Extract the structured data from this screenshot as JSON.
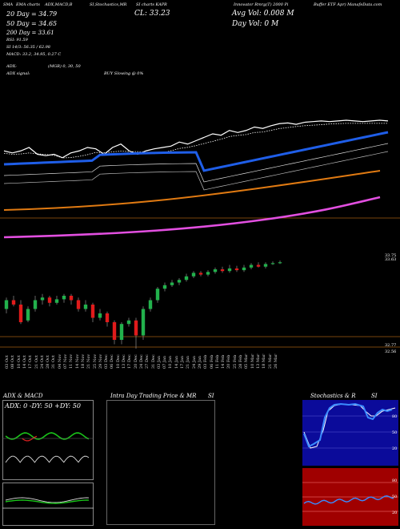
{
  "header": {
    "title_fragments": [
      "SMA",
      "EMA charts",
      "ADX,MACD,B",
      "SI,Stochastics,MR",
      "SI charts KAPR",
      "Innovator Rmrg(T) 2000 Pi",
      "Buffer ETF Apr) ManafeData.com"
    ],
    "close_label": "CL: 33.23",
    "avg_vol_label": "Avg Vol: 0.008  M",
    "day_vol_label": "Day Vol: 0  M",
    "sma_lines": [
      "20  Day = 34.79",
      "50  Day = 34.65",
      "200  Day = 33.61",
      "RSI: 91.59",
      "SI 14/3: 56.35 / 62.98",
      "MACD: 33.2, 34.95, 0.27  C"
    ],
    "adx_line": "ADX:",
    "adx_mid": "(MGR) 0,  30,  50",
    "adx_signal_label": "ADX  signal:",
    "buy_label": "BUY Slowing @ 0%"
  },
  "price_axis": {
    "top_labels": [
      "33.75",
      "33.63"
    ],
    "bottom_labels": [
      "32.77",
      "32.56"
    ]
  },
  "dates": [
    "03 Oct",
    "08 Oct",
    "10 Oct",
    "14 Oct",
    "17 Oct",
    "21 Oct",
    "24 Oct",
    "28 Oct",
    "31 Oct",
    "04 Nov",
    "07 Nov",
    "11 Nov",
    "14 Nov",
    "18 Nov",
    "21 Nov",
    "25 Nov",
    "29 Nov",
    "03 Dec",
    "06 Dec",
    "10 Dec",
    "13 Dec",
    "17 Dec",
    "20 Dec",
    "24 Dec",
    "27 Dec",
    "31 Dec",
    "03 Jan",
    "07 Jan",
    "10 Jan",
    "14 Jan",
    "17 Jan",
    "21 Jan",
    "24 Jan",
    "29 Jan",
    "03 Feb",
    "06 Feb",
    "11 Feb",
    "14 Feb",
    "20 Feb",
    "25 Feb",
    "28 Feb",
    "05 Mar",
    "10 Mar",
    "13 Mar",
    "18 Mar",
    "21 Mar",
    "26 Mar"
  ],
  "panels": {
    "adx_title": "ADX  & MACD",
    "adx_values": "ADX: 0  -DY: 50  +DY: 50",
    "intraday_title": "Intra  Day Trading Price  & MR",
    "intraday_si": "SI",
    "stoch_title": "Stochastics & R",
    "stoch_si": "SI",
    "stoch_levels": [
      "80",
      "50",
      "20"
    ],
    "rsi_levels": [
      "80",
      "50",
      "20"
    ]
  },
  "colors": {
    "background": "#000000",
    "price_line": "#ffffff",
    "sma20": "#ffffff",
    "ema": "#1f5ee8",
    "sma50": "#e07a12",
    "sma200": "#e24fe0",
    "up_candle": "#22b14c",
    "down_candle": "#e01b1b",
    "stoch_bg": "#0b0b9a",
    "rsi_bg": "#a00000",
    "macd_green": "#19c319",
    "macd_red": "#e02020"
  },
  "chart_data": {
    "type": "line",
    "close": 33.23,
    "avg_vol_m": 0.008,
    "day_vol_m": 0,
    "sma": {
      "d20": 34.79,
      "d50": 34.65,
      "d200": 33.61
    },
    "rsi": 91.59,
    "stochastics": [
      56.35,
      62.98
    ],
    "macd": [
      33.2,
      34.95,
      0.27
    ],
    "adx": 0,
    "minus_di": 50,
    "plus_di": 50,
    "price_axis_labels": [
      33.75,
      33.63,
      32.77,
      32.56
    ],
    "series_price": [
      0.55,
      0.52,
      0.55,
      0.6,
      0.5,
      0.48,
      0.5,
      0.45,
      0.52,
      0.55,
      0.6,
      0.58,
      0.5,
      0.6,
      0.65,
      0.55,
      0.5,
      0.55,
      0.58,
      0.6,
      0.62,
      0.68,
      0.65,
      0.7,
      0.75,
      0.8,
      0.78,
      0.85,
      0.82,
      0.85,
      0.9,
      0.88,
      0.92,
      0.95,
      0.96,
      0.94,
      0.97,
      0.98,
      0.99,
      0.98,
      0.99,
      1.0,
      0.99,
      0.98,
      0.99,
      1.0,
      0.99
    ],
    "candles": [
      [
        0.45,
        0.55,
        0.4,
        0.58
      ],
      [
        0.55,
        0.5,
        0.48,
        0.6
      ],
      [
        0.5,
        0.3,
        0.28,
        0.55
      ],
      [
        0.32,
        0.45,
        0.3,
        0.48
      ],
      [
        0.45,
        0.55,
        0.42,
        0.6
      ],
      [
        0.55,
        0.58,
        0.5,
        0.62
      ],
      [
        0.58,
        0.52,
        0.48,
        0.6
      ],
      [
        0.52,
        0.56,
        0.5,
        0.6
      ],
      [
        0.56,
        0.6,
        0.52,
        0.62
      ],
      [
        0.6,
        0.55,
        0.5,
        0.62
      ],
      [
        0.55,
        0.45,
        0.42,
        0.58
      ],
      [
        0.45,
        0.5,
        0.42,
        0.55
      ],
      [
        0.5,
        0.35,
        0.3,
        0.52
      ],
      [
        0.35,
        0.4,
        0.32,
        0.45
      ],
      [
        0.4,
        0.3,
        0.25,
        0.42
      ],
      [
        0.3,
        0.1,
        0.05,
        0.32
      ],
      [
        0.1,
        0.28,
        0.05,
        0.3
      ],
      [
        0.28,
        0.32,
        0.25,
        0.35
      ],
      [
        0.32,
        0.15,
        0.0,
        0.35
      ],
      [
        0.15,
        0.45,
        0.1,
        0.48
      ],
      [
        0.45,
        0.55,
        0.42,
        0.58
      ],
      [
        0.55,
        0.68,
        0.52,
        0.7
      ],
      [
        0.68,
        0.72,
        0.65,
        0.75
      ],
      [
        0.72,
        0.75,
        0.7,
        0.78
      ],
      [
        0.75,
        0.78,
        0.72,
        0.8
      ],
      [
        0.78,
        0.82,
        0.76,
        0.85
      ],
      [
        0.82,
        0.86,
        0.8,
        0.88
      ],
      [
        0.86,
        0.84,
        0.82,
        0.88
      ],
      [
        0.84,
        0.87,
        0.82,
        0.89
      ],
      [
        0.87,
        0.9,
        0.85,
        0.92
      ],
      [
        0.9,
        0.88,
        0.86,
        0.93
      ],
      [
        0.88,
        0.91,
        0.86,
        0.95
      ],
      [
        0.91,
        0.89,
        0.87,
        0.94
      ],
      [
        0.89,
        0.92,
        0.87,
        0.95
      ],
      [
        0.92,
        0.95,
        0.9,
        0.97
      ],
      [
        0.95,
        0.93,
        0.92,
        0.98
      ],
      [
        0.93,
        0.96,
        0.91,
        0.98
      ],
      [
        0.96,
        0.97,
        0.95,
        0.99
      ],
      [
        0.97,
        0.98,
        0.96,
        1.0
      ]
    ]
  }
}
